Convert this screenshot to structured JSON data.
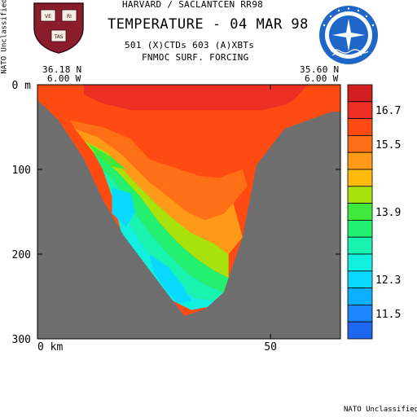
{
  "header": {
    "line1": "HARVARD / SACLANTCEN RR98",
    "title": "TEMPERATURE - 04 MAR 98",
    "counts": "501 (X)CTDs   603 (A)XBTs",
    "forcing": "FNMOC SURF. FORCING",
    "left_lat": "36.18 N",
    "left_lon": "6.00 W",
    "right_lat": "35.60 N",
    "right_lon": "6.00 W"
  },
  "classification": {
    "side": "NATO Unclassified",
    "bottom": "NATO Unclassified"
  },
  "logos": {
    "left": {
      "name": "harvard-shield",
      "letters": [
        "VE",
        "RI",
        "TAS"
      ],
      "color": "#8b1c2b"
    },
    "right": {
      "name": "nato-saclantcen-seal",
      "color": "#1f66c9"
    }
  },
  "chart_data": {
    "type": "heatmap",
    "variant": "vertical-section-contour",
    "title": "TEMPERATURE - 04 MAR 98",
    "xlabel": "",
    "ylabel": "",
    "x_unit": "km",
    "y_unit": "m",
    "x_ticks": [
      {
        "value": 0,
        "label": "0 km"
      },
      {
        "value": 50,
        "label": "50"
      }
    ],
    "y_ticks": [
      {
        "value": 0,
        "label": "0 m"
      },
      {
        "value": 100,
        "label": "100"
      },
      {
        "value": 200,
        "label": "200"
      },
      {
        "value": 300,
        "label": "300"
      }
    ],
    "xlim": [
      0,
      65
    ],
    "ylim": [
      0,
      300
    ],
    "y_inverted": true,
    "land_color": "#6e6e6e",
    "bathymetry": [
      {
        "x": 0,
        "depth": 18
      },
      {
        "x": 4.5,
        "depth": 42
      },
      {
        "x": 10,
        "depth": 88
      },
      {
        "x": 14,
        "depth": 136
      },
      {
        "x": 18.5,
        "depth": 178
      },
      {
        "x": 24.5,
        "depth": 222
      },
      {
        "x": 31.5,
        "depth": 273
      },
      {
        "x": 36,
        "depth": 265
      },
      {
        "x": 40,
        "depth": 245
      },
      {
        "x": 44,
        "depth": 180
      },
      {
        "x": 47,
        "depth": 95
      },
      {
        "x": 53,
        "depth": 52
      },
      {
        "x": 63,
        "depth": 32
      },
      {
        "x": 65,
        "depth": 32
      }
    ],
    "temperature_regions": [
      {
        "temp": 16.3,
        "polygon": [
          [
            0,
            0
          ],
          [
            65,
            0
          ],
          [
            65,
            32
          ],
          [
            53,
            48
          ],
          [
            49,
            62
          ],
          [
            48,
            80
          ],
          [
            44,
            100
          ],
          [
            39,
            110
          ],
          [
            35,
            108
          ],
          [
            30,
            99
          ],
          [
            24,
            88
          ],
          [
            20,
            64
          ],
          [
            14,
            50
          ],
          [
            7,
            42
          ],
          [
            4.5,
            38
          ],
          [
            0,
            18
          ]
        ]
      },
      {
        "temp": 16.7,
        "polygon": [
          [
            10,
            0
          ],
          [
            58,
            0
          ],
          [
            55,
            18
          ],
          [
            53,
            24
          ],
          [
            48,
            30
          ],
          [
            20,
            30
          ],
          [
            14,
            22
          ],
          [
            10,
            12
          ]
        ]
      },
      {
        "temp": 15.8,
        "polygon": [
          [
            7,
            42
          ],
          [
            14,
            50
          ],
          [
            20,
            64
          ],
          [
            24,
            88
          ],
          [
            30,
            99
          ],
          [
            35,
            108
          ],
          [
            39,
            110
          ],
          [
            44,
            100
          ],
          [
            45,
            120
          ],
          [
            42,
            140
          ],
          [
            40,
            152
          ],
          [
            36,
            160
          ],
          [
            32,
            150
          ],
          [
            28,
            132
          ],
          [
            24,
            115
          ],
          [
            18,
            82
          ],
          [
            13,
            62
          ],
          [
            8,
            52
          ]
        ]
      },
      {
        "temp": 15.2,
        "polygon": [
          [
            8,
            52
          ],
          [
            13,
            62
          ],
          [
            18,
            82
          ],
          [
            24,
            115
          ],
          [
            28,
            132
          ],
          [
            32,
            150
          ],
          [
            36,
            160
          ],
          [
            40,
            152
          ],
          [
            42,
            140
          ],
          [
            44,
            180
          ],
          [
            41,
            200
          ],
          [
            38,
            188
          ],
          [
            33,
            175
          ],
          [
            29,
            158
          ],
          [
            25,
            138
          ],
          [
            20,
            110
          ],
          [
            15,
            80
          ],
          [
            10,
            66
          ]
        ]
      },
      {
        "temp": 14.7,
        "polygon": [
          [
            10,
            66
          ],
          [
            15,
            80
          ],
          [
            20,
            110
          ],
          [
            25,
            138
          ],
          [
            29,
            158
          ],
          [
            33,
            175
          ],
          [
            38,
            188
          ],
          [
            41,
            200
          ],
          [
            41,
            228
          ],
          [
            38,
            220
          ],
          [
            34,
            205
          ],
          [
            30,
            186
          ],
          [
            26,
            162
          ],
          [
            22,
            132
          ],
          [
            17,
            102
          ],
          [
            12,
            80
          ]
        ]
      },
      {
        "temp": 14.3,
        "polygon": [
          [
            11,
            70
          ],
          [
            16,
            86
          ],
          [
            19,
            100
          ],
          [
            14,
            94
          ]
        ]
      },
      {
        "temp": 13.9,
        "polygon": [
          [
            12,
            80
          ],
          [
            17,
            102
          ],
          [
            22,
            132
          ],
          [
            26,
            162
          ],
          [
            30,
            186
          ],
          [
            34,
            205
          ],
          [
            38,
            220
          ],
          [
            41,
            228
          ],
          [
            40,
            245
          ],
          [
            36,
            236
          ],
          [
            32,
            222
          ],
          [
            28,
            200
          ],
          [
            24,
            174
          ],
          [
            20,
            144
          ],
          [
            17,
            118
          ],
          [
            14,
            100
          ]
        ]
      },
      {
        "temp": 13.5,
        "polygon": [
          [
            14,
            100
          ],
          [
            17,
            118
          ],
          [
            20,
            144
          ],
          [
            24,
            174
          ],
          [
            28,
            200
          ],
          [
            32,
            222
          ],
          [
            36,
            236
          ],
          [
            40,
            245
          ],
          [
            38,
            255
          ],
          [
            34,
            252
          ],
          [
            30,
            240
          ],
          [
            26,
            215
          ],
          [
            22,
            185
          ],
          [
            19,
            158
          ],
          [
            16,
            132
          ]
        ]
      },
      {
        "temp": 13.1,
        "polygon": [
          [
            16,
            132
          ],
          [
            19,
            158
          ],
          [
            22,
            185
          ],
          [
            26,
            215
          ],
          [
            30,
            240
          ],
          [
            34,
            252
          ],
          [
            38,
            255
          ],
          [
            37,
            262
          ],
          [
            33,
            266
          ],
          [
            29,
            255
          ],
          [
            25,
            232
          ],
          [
            21,
            205
          ],
          [
            18,
            175
          ]
        ]
      },
      {
        "temp": 12.3,
        "polygon": [
          [
            16,
            122
          ],
          [
            20,
            128
          ],
          [
            21,
            150
          ],
          [
            19,
            168
          ],
          [
            16,
            152
          ]
        ]
      },
      {
        "temp": 12.6,
        "polygon": [
          [
            24,
            200
          ],
          [
            28,
            215
          ],
          [
            31,
            235
          ],
          [
            33,
            255
          ],
          [
            30,
            258
          ],
          [
            27,
            238
          ],
          [
            25,
            222
          ]
        ]
      }
    ],
    "colorbar": {
      "levels": [
        {
          "label": "",
          "color": "#d21e1e"
        },
        {
          "label": "16.7",
          "color": "#ee2e22"
        },
        {
          "label": "",
          "color": "#ff4b12"
        },
        {
          "label": "15.5",
          "color": "#ff6f16"
        },
        {
          "label": "",
          "color": "#ff9a18"
        },
        {
          "label": "",
          "color": "#ffba0c"
        },
        {
          "label": "",
          "color": "#a8e20a"
        },
        {
          "label": "13.9",
          "color": "#3fe83a"
        },
        {
          "label": "",
          "color": "#24f070"
        },
        {
          "label": "",
          "color": "#19f3b0"
        },
        {
          "label": "",
          "color": "#10efe0"
        },
        {
          "label": "12.3",
          "color": "#0ad9ff"
        },
        {
          "label": "",
          "color": "#0ab0ff"
        },
        {
          "label": "11.5",
          "color": "#1a86ff"
        },
        {
          "label": "",
          "color": "#1d66f0"
        }
      ]
    }
  }
}
